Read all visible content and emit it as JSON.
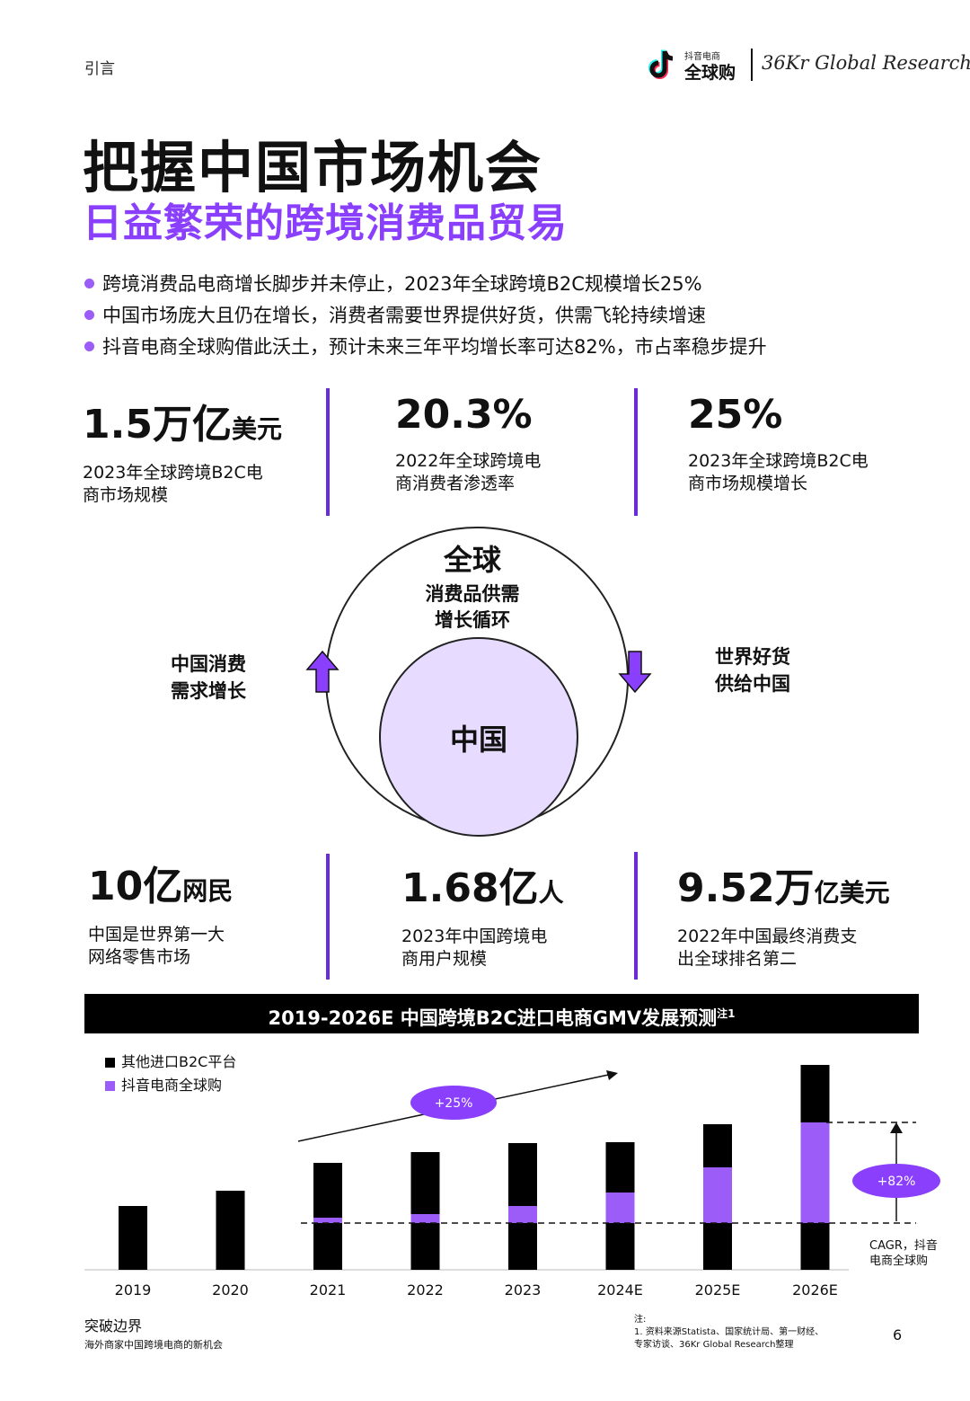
{
  "header": {
    "section": "引言",
    "brand_small": "抖音电商",
    "brand_main": "全球购",
    "partner": "36Kr Global Research"
  },
  "title": "把握中国市场机会",
  "subtitle": "日益繁荣的跨境消费品贸易",
  "bullets": [
    "跨境消费品电商增长脚步并未停止，2023年全球跨境B2C规模增长25%",
    "中国市场庞大且仍在增长，消费者需要世界提供好货，供需飞轮持续增速",
    "抖音电商全球购借此沃土，预计未来三年平均增长率可达82%，市占率稳步提升"
  ],
  "stats_top": [
    {
      "value": "1.5万亿",
      "unit": "美元",
      "desc_1": "2023年全球跨境B2C电",
      "desc_2": "商市场规模"
    },
    {
      "value": "20.3%",
      "unit": "",
      "desc_1": "2022年全球跨境电",
      "desc_2": "商消费者渗透率"
    },
    {
      "value": "25%",
      "unit": "",
      "desc_1": "2023年全球跨境B2C电",
      "desc_2": "商市场规模增长"
    }
  ],
  "cycle": {
    "outer_title": "全球",
    "outer_line1": "消费品供需",
    "outer_line2": "增长循环",
    "inner": "中国",
    "left_1": "中国消费",
    "left_2": "需求增长",
    "right_1": "世界好货",
    "right_2": "供给中国"
  },
  "stats_bottom": [
    {
      "value": "10亿",
      "unit": "网民",
      "desc_1": "中国是世界第一大",
      "desc_2": "网络零售市场"
    },
    {
      "value": "1.68亿",
      "unit": "人",
      "desc_1": "2023年中国跨境电",
      "desc_2": "商用户规模"
    },
    {
      "value": "9.52万",
      "unit": "亿美元",
      "desc_1": "2022年中国最终消费支",
      "desc_2": "出全球排名第二"
    }
  ],
  "chart_title": "2019-2026E 中国跨境B2C进口电商GMV发展预测",
  "chart_title_note": "注1",
  "colors": {
    "accent": "#8a3ffc",
    "purple_bar": "#9b5cf7",
    "bar_black": "#000000",
    "light_purple": "#e7dcff"
  },
  "chart_data": {
    "type": "bar",
    "stacked": true,
    "categories": [
      "2019",
      "2020",
      "2021",
      "2022",
      "2023",
      "2024E",
      "2025E",
      "2026E"
    ],
    "series": [
      {
        "name": "其他进口B2C平台",
        "color": "#000000",
        "values": [
          71,
          88,
          113,
          121,
          122,
          108,
          100,
          116
        ]
      },
      {
        "name": "抖音电商全球购",
        "color": "#9b5cf7",
        "values": [
          0,
          0,
          6,
          10,
          19,
          34,
          62,
          112
        ]
      }
    ],
    "annotations": [
      {
        "text": "+25%"
      },
      {
        "text": "+82%"
      },
      {
        "text": "CAGR，抖音电商全球购"
      }
    ],
    "legend_position": "top-left",
    "grid": false,
    "ylim": [
      0,
      230
    ]
  },
  "footer": {
    "title": "突破边界",
    "subtitle": "海外商家中国跨境电商的新机会",
    "note_head": "注:",
    "note_1": "1. 资料来源Statista、国家统计局、第一财经、",
    "note_2": "专家访谈、36Kr Global Research整理",
    "page": "6"
  }
}
